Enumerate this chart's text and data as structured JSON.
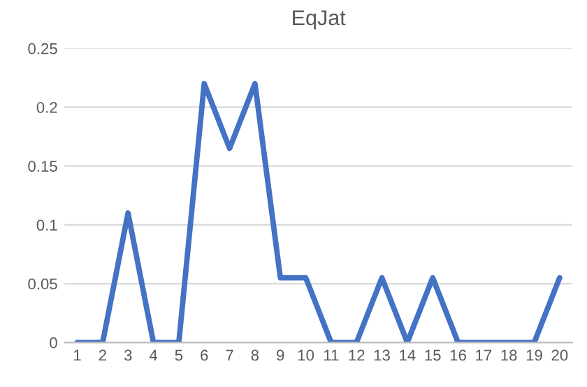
{
  "chart_data": {
    "type": "line",
    "title": "EqJat",
    "categories": [
      "1",
      "2",
      "3",
      "4",
      "5",
      "6",
      "7",
      "8",
      "9",
      "10",
      "11",
      "12",
      "13",
      "14",
      "15",
      "16",
      "17",
      "18",
      "19",
      "20"
    ],
    "series": [
      {
        "color": "#4472c4",
        "values": [
          0,
          0,
          0.11,
          0,
          0,
          0.22,
          0.165,
          0.22,
          0.055,
          0.055,
          0,
          0,
          0.055,
          0,
          0.055,
          0,
          0,
          0,
          0,
          0.055
        ]
      }
    ],
    "ylim": [
      0,
      0.25
    ],
    "yticks": [
      {
        "value": 0,
        "label": "0"
      },
      {
        "value": 0.05,
        "label": "0.05"
      },
      {
        "value": 0.1,
        "label": "0.1"
      },
      {
        "value": 0.15,
        "label": "0.15"
      },
      {
        "value": 0.2,
        "label": "0.2"
      },
      {
        "value": 0.25,
        "label": "0.25"
      }
    ],
    "grid": "y",
    "marker": "none",
    "line_style": "solid"
  }
}
